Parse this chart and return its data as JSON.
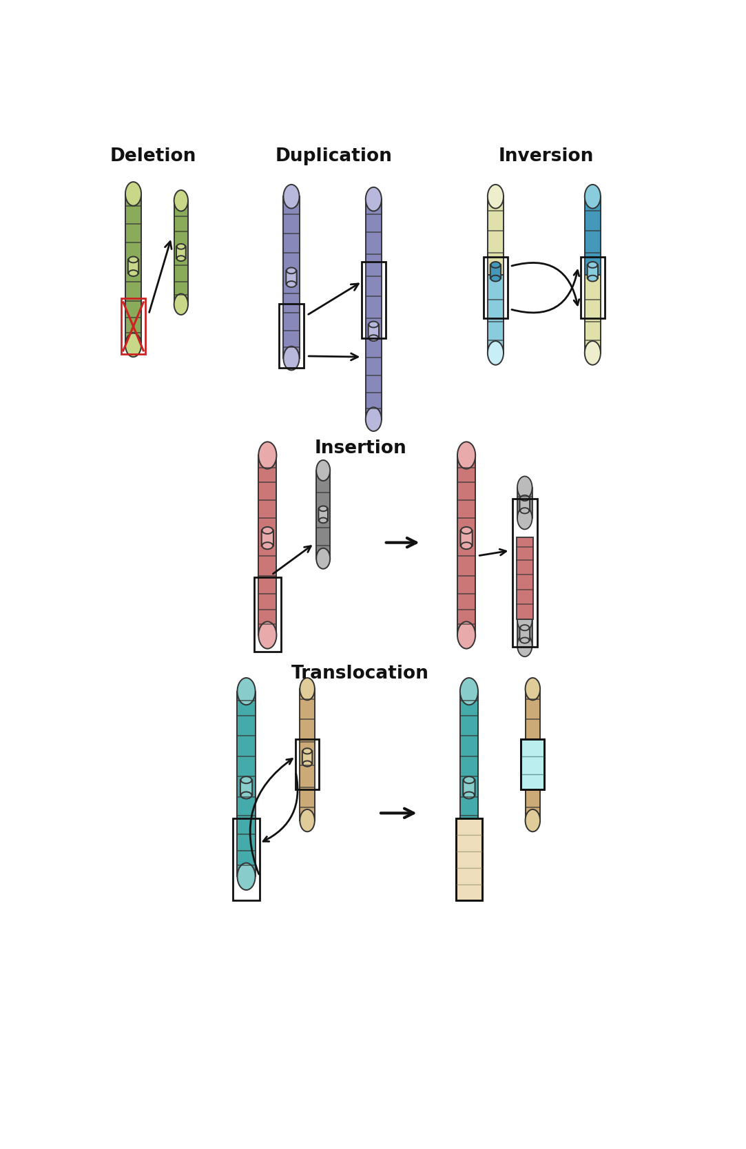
{
  "background": "#ffffff",
  "colors": {
    "green_main": "#8aab5a",
    "green_light": "#c8d888",
    "green_pale": "#ddeebb",
    "purple_main": "#8888bb",
    "purple_light": "#b8b8dd",
    "purple_pale": "#d8d8ee",
    "blue_main": "#4499bb",
    "blue_light": "#88ccdd",
    "blue_pale": "#c8eef8",
    "blue_dark": "#2277aa",
    "yellow_main": "#cccc77",
    "yellow_light": "#e0e0aa",
    "yellow_pale": "#eeeecc",
    "pink_main": "#cc7777",
    "pink_light": "#e8aaaa",
    "pink_pale": "#f0cccc",
    "gray_main": "#888888",
    "gray_light": "#bbbbbb",
    "gray_pale": "#dddddd",
    "teal_main": "#44aaaa",
    "teal_light": "#88cccc",
    "teal_pale": "#bbeeee",
    "beige_main": "#ccaa77",
    "beige_light": "#e0cc99",
    "beige_pale": "#eedebc",
    "red": "#cc2222",
    "black": "#111111"
  },
  "labels": {
    "deletion": "Deletion",
    "duplication": "Duplication",
    "inversion": "Inversion",
    "insertion": "Insertion",
    "translocation": "Translocation"
  }
}
